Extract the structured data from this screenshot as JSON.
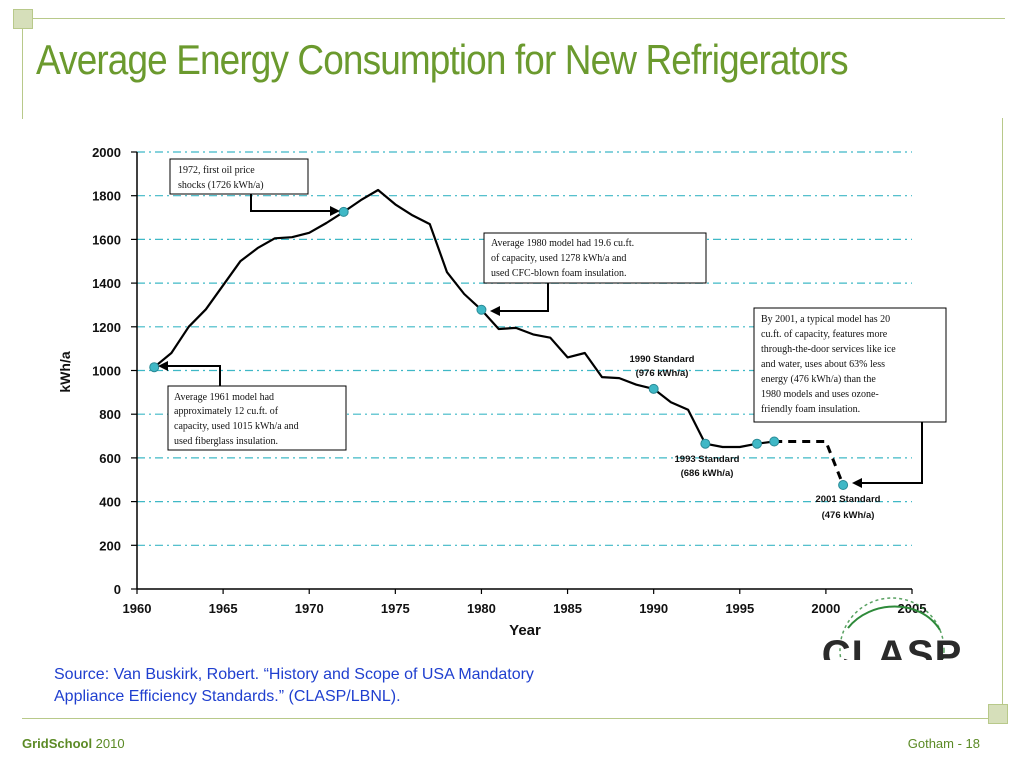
{
  "slide": {
    "title": "Average Energy Consumption for New Refrigerators",
    "source_line1": "Source: Van Buskirk, Robert. “History and Scope of USA Mandatory",
    "source_line2": "Appliance Efficiency Standards.” (CLASP/LBNL).",
    "footer_brand": "GridSchool",
    "footer_year": " 2010",
    "footer_right": "Gotham - 18",
    "logo_text": "CLASP"
  },
  "chart_data": {
    "type": "line",
    "title": "",
    "xlabel": "Year",
    "ylabel": "kWh/a",
    "xlim": [
      1960,
      2005
    ],
    "ylim": [
      0,
      2000
    ],
    "x_ticks": [
      "1960",
      "1965",
      "1970",
      "1975",
      "1980",
      "1985",
      "1990",
      "1995",
      "2000",
      "2005"
    ],
    "y_ticks": [
      "0",
      "200",
      "400",
      "600",
      "800",
      "1000",
      "1200",
      "1400",
      "1600",
      "1800",
      "2000"
    ],
    "grid": true,
    "series": [
      {
        "x": [
          1961,
          1962,
          1963,
          1964,
          1965,
          1966,
          1967,
          1968,
          1969,
          1970,
          1971,
          1972,
          1973,
          1974,
          1975,
          1976,
          1977,
          1978,
          1979,
          1980,
          1981,
          1982,
          1983,
          1984,
          1985,
          1986,
          1987,
          1988,
          1989,
          1990,
          1991,
          1992,
          1993,
          1994,
          1995,
          1996,
          1997
        ],
        "y": [
          1015,
          1080,
          1200,
          1280,
          1390,
          1500,
          1560,
          1605,
          1610,
          1630,
          1675,
          1726,
          1780,
          1826,
          1760,
          1710,
          1670,
          1450,
          1350,
          1278,
          1190,
          1195,
          1165,
          1150,
          1060,
          1080,
          970,
          965,
          935,
          916,
          855,
          820,
          665,
          650,
          650,
          665,
          675
        ]
      },
      {
        "x": [
          1997,
          2000,
          2001
        ],
        "y": [
          675,
          675,
          476
        ],
        "style": "dashed"
      }
    ],
    "markers": [
      {
        "x": 1961,
        "y": 1015
      },
      {
        "x": 1972,
        "y": 1726
      },
      {
        "x": 1980,
        "y": 1278
      },
      {
        "x": 1990,
        "y": 916
      },
      {
        "x": 1993,
        "y": 665
      },
      {
        "x": 1996,
        "y": 665
      },
      {
        "x": 1997,
        "y": 675
      },
      {
        "x": 2001,
        "y": 476
      }
    ],
    "annotations": [
      {
        "lines": [
          "1972,  first  oil  price",
          "shocks (1726 kWh/a)"
        ]
      },
      {
        "lines": [
          "Average  1980  model had  19.6 cu.ft.",
          "of  capacity,  used  1278  kWh/a  and",
          "used CFC-blown foam insulation."
        ]
      },
      {
        "lines": [
          "Average    1961    model    had",
          "approximately   12   cu.ft.   of",
          "capacity, used 1015 kWh/a and",
          "used fiberglass insulation."
        ]
      },
      {
        "lines": [
          "By 2001,  a typical model has 20",
          "cu.ft.  of  capacity,  features more",
          "through-the-door services like ice",
          "and water,  uses about 63% less",
          "energy (476 kWh/a) than the",
          "1980  models  and  uses  ozone-",
          "friendly foam insulation."
        ]
      }
    ],
    "standards": [
      {
        "label": "1990 Standard",
        "value_label": "(976 kWh/a)"
      },
      {
        "label": "1993 Standard",
        "value_label": "(686 kWh/a)"
      },
      {
        "label": "2001 Standard",
        "value_label": "(476 kWh/a)"
      }
    ],
    "colors": {
      "line": "#000000",
      "marker": "#3fb8c6",
      "grid": "#3fb8c6",
      "title": "#6b9a2e",
      "source": "#1f3fcf"
    }
  }
}
